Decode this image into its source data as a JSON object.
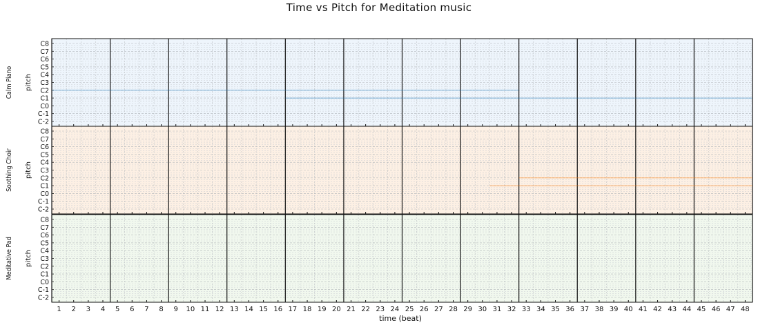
{
  "title": "Time vs Pitch for Meditation music",
  "chart_data": {
    "type": "piano-roll",
    "title": "Time vs Pitch for Meditation music",
    "xlabel": "time (beat)",
    "ylabel": "pitch",
    "x_ticks": [
      "1",
      "2",
      "3",
      "4",
      "5",
      "6",
      "7",
      "8",
      "9",
      "10",
      "11",
      "12",
      "13",
      "14",
      "15",
      "16",
      "17",
      "18",
      "19",
      "20",
      "21",
      "22",
      "23",
      "24",
      "25",
      "26",
      "27",
      "28",
      "29",
      "30",
      "31",
      "32",
      "33",
      "34",
      "35",
      "36",
      "37",
      "38",
      "39",
      "40",
      "41",
      "42",
      "43",
      "44",
      "45",
      "46",
      "47",
      "48"
    ],
    "y_ticks": [
      "C-2",
      "C-1",
      "C0",
      "C1",
      "C2",
      "C3",
      "C4",
      "C5",
      "C6",
      "C7",
      "C8"
    ],
    "xlim": [
      0.5,
      48.5
    ],
    "beats_per_bar": 4,
    "grid": true,
    "tracks": [
      {
        "name": "Calm Piano",
        "color": "#1f77b4",
        "background": "#eef5fc",
        "notes": [
          {
            "pitch": "C2",
            "start": 0.5,
            "end": 32.5
          },
          {
            "pitch": "C1",
            "start": 16.5,
            "end": 48.5
          }
        ]
      },
      {
        "name": "Soothing Choir",
        "color": "#ff7f0e",
        "background": "#fdf0e4",
        "notes": [
          {
            "pitch": "C2",
            "start": 32.5,
            "end": 48.5
          },
          {
            "pitch": "C1",
            "start": 30.5,
            "end": 48.5
          }
        ]
      },
      {
        "name": "Meditative Pad",
        "color": "#2ca02c",
        "background": "#f1f8ee",
        "notes": []
      }
    ]
  }
}
